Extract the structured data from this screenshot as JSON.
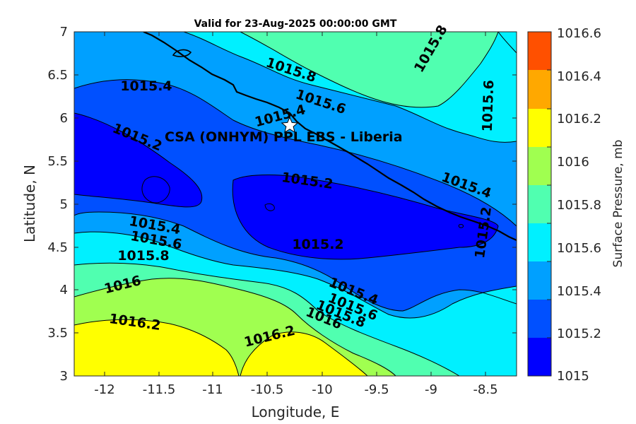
{
  "title": "Valid for 23-Aug-2025 00:00:00 GMT",
  "annotation": "CSA (ONHYM) PPL EBS  - Liberia",
  "marker": "star-icon",
  "xaxis": {
    "label": "Longitude, E",
    "ticks": [
      "-12",
      "-11.5",
      "-11",
      "-10.5",
      "-10",
      "-9.5",
      "-9",
      "-8.5"
    ]
  },
  "yaxis": {
    "label": "Latitude, N",
    "ticks": [
      "3",
      "3.5",
      "4",
      "4.5",
      "5",
      "5.5",
      "6",
      "6.5",
      "7"
    ]
  },
  "colorbar": {
    "label": "Surface Pressure, mb",
    "ticks": [
      "1015",
      "1015.2",
      "1015.4",
      "1015.6",
      "1015.8",
      "1016",
      "1016.2",
      "1016.4",
      "1016.6"
    ],
    "colors": [
      "#0000ff",
      "#0050ff",
      "#00a0ff",
      "#00f0ff",
      "#50ffb0",
      "#a0ff50",
      "#ffff00",
      "#ffa800",
      "#ff5000"
    ]
  },
  "contour_labels": [
    {
      "text": "1015.8"
    },
    {
      "text": "1015.8"
    },
    {
      "text": "1015.6"
    },
    {
      "text": "1015.6"
    },
    {
      "text": "1015.4"
    },
    {
      "text": "1015.4"
    },
    {
      "text": "1015.4"
    },
    {
      "text": "1015.2"
    },
    {
      "text": "1015.2"
    },
    {
      "text": "1015.2"
    },
    {
      "text": "1015.2"
    },
    {
      "text": "1015.4"
    },
    {
      "text": "1015.6"
    },
    {
      "text": "1015.8"
    },
    {
      "text": "1016"
    },
    {
      "text": "1015.4"
    },
    {
      "text": "1015.6"
    },
    {
      "text": "1016"
    },
    {
      "text": "1015.8"
    },
    {
      "text": "1016.2"
    },
    {
      "text": "1016.2"
    }
  ]
}
